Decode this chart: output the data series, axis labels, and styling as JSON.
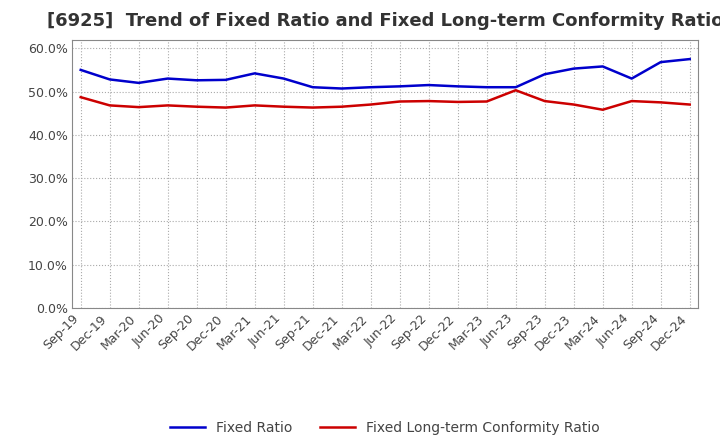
{
  "title": "[6925]  Trend of Fixed Ratio and Fixed Long-term Conformity Ratio",
  "x_labels": [
    "Sep-19",
    "Dec-19",
    "Mar-20",
    "Jun-20",
    "Sep-20",
    "Dec-20",
    "Mar-21",
    "Jun-21",
    "Sep-21",
    "Dec-21",
    "Mar-22",
    "Jun-22",
    "Sep-22",
    "Dec-22",
    "Mar-23",
    "Jun-23",
    "Sep-23",
    "Dec-23",
    "Mar-24",
    "Jun-24",
    "Sep-24",
    "Dec-24"
  ],
  "fixed_ratio": [
    0.55,
    0.528,
    0.52,
    0.53,
    0.526,
    0.527,
    0.542,
    0.53,
    0.51,
    0.507,
    0.51,
    0.512,
    0.515,
    0.512,
    0.51,
    0.51,
    0.54,
    0.553,
    0.558,
    0.53,
    0.568,
    0.575
  ],
  "fixed_lt_ratio": [
    0.487,
    0.468,
    0.464,
    0.468,
    0.465,
    0.463,
    0.468,
    0.465,
    0.463,
    0.465,
    0.47,
    0.477,
    0.478,
    0.476,
    0.477,
    0.503,
    0.478,
    0.47,
    0.458,
    0.478,
    0.475,
    0.47
  ],
  "fixed_ratio_color": "#0000cc",
  "fixed_lt_ratio_color": "#cc0000",
  "ylim_min": 0.0,
  "ylim_max": 0.62,
  "grid_color": "#aaaaaa",
  "background_color": "#ffffff",
  "plot_bg_color": "#ffffff",
  "title_fontsize": 13,
  "legend_fontsize": 10,
  "tick_fontsize": 9,
  "line_width": 1.8
}
